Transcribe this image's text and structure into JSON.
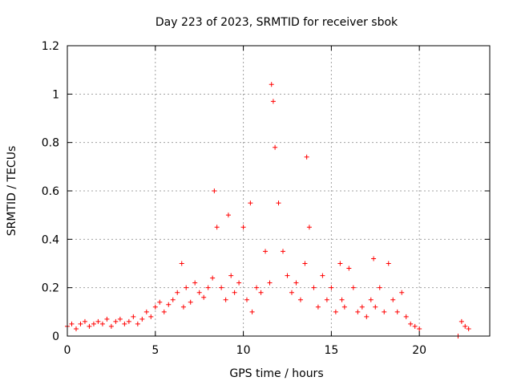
{
  "chart_data": {
    "type": "scatter",
    "title": "Day 223 of 2023, SRMTID for receiver sbok",
    "xlabel": "GPS time / hours",
    "ylabel": "SRMTID / TECUs",
    "xlim": [
      0,
      24
    ],
    "ylim": [
      0,
      1.2
    ],
    "xticks": [
      0,
      5,
      10,
      15,
      20
    ],
    "xtick_labels": [
      "0",
      "5",
      "10",
      "15",
      "20"
    ],
    "yticks": [
      0,
      0.2,
      0.4,
      0.6,
      0.8,
      1.0,
      1.2
    ],
    "ytick_labels": [
      "0",
      "0.2",
      "0.4",
      "0.6",
      "0.8",
      "1",
      "1.2"
    ],
    "grid": true,
    "marker": "+",
    "color": "#ff0000",
    "series": [
      {
        "name": "sbok",
        "x": [
          0.0,
          0.25,
          0.5,
          0.75,
          1.0,
          1.25,
          1.5,
          1.75,
          2.0,
          2.25,
          2.5,
          2.75,
          3.0,
          3.25,
          3.5,
          3.75,
          4.0,
          4.25,
          4.5,
          4.75,
          5.0,
          5.25,
          5.5,
          5.75,
          6.0,
          6.25,
          6.5,
          6.6,
          6.75,
          7.0,
          7.25,
          7.5,
          7.75,
          8.0,
          8.25,
          8.35,
          8.5,
          8.75,
          9.0,
          9.15,
          9.3,
          9.5,
          9.75,
          10.0,
          10.2,
          10.4,
          10.5,
          10.75,
          11.0,
          11.25,
          11.5,
          11.6,
          11.7,
          11.8,
          12.0,
          12.25,
          12.5,
          12.75,
          13.0,
          13.25,
          13.5,
          13.6,
          13.75,
          14.0,
          14.25,
          14.5,
          14.75,
          15.0,
          15.25,
          15.5,
          15.6,
          15.75,
          16.0,
          16.25,
          16.5,
          16.75,
          17.0,
          17.25,
          17.4,
          17.5,
          17.75,
          18.0,
          18.25,
          18.5,
          18.75,
          19.0,
          19.25,
          19.5,
          19.75,
          20.0,
          22.2,
          22.4,
          22.6,
          22.8
        ],
        "y": [
          0.04,
          0.05,
          0.03,
          0.05,
          0.06,
          0.04,
          0.05,
          0.06,
          0.05,
          0.07,
          0.04,
          0.06,
          0.07,
          0.05,
          0.06,
          0.08,
          0.05,
          0.07,
          0.1,
          0.08,
          0.12,
          0.14,
          0.1,
          0.13,
          0.15,
          0.18,
          0.3,
          0.12,
          0.2,
          0.14,
          0.22,
          0.18,
          0.16,
          0.2,
          0.24,
          0.6,
          0.45,
          0.2,
          0.15,
          0.5,
          0.25,
          0.18,
          0.22,
          0.45,
          0.15,
          0.55,
          0.1,
          0.2,
          0.18,
          0.35,
          0.22,
          1.04,
          0.97,
          0.78,
          0.55,
          0.35,
          0.25,
          0.18,
          0.22,
          0.15,
          0.3,
          0.74,
          0.45,
          0.2,
          0.12,
          0.25,
          0.15,
          0.2,
          0.1,
          0.3,
          0.15,
          0.12,
          0.28,
          0.2,
          0.1,
          0.12,
          0.08,
          0.15,
          0.32,
          0.12,
          0.2,
          0.1,
          0.3,
          0.15,
          0.1,
          0.18,
          0.08,
          0.05,
          0.04,
          0.03,
          0.0,
          0.06,
          0.04,
          0.03
        ]
      }
    ]
  }
}
